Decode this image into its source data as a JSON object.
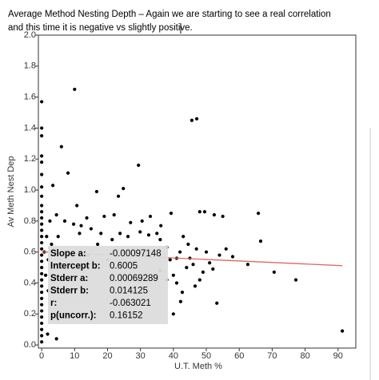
{
  "chart_data": {
    "type": "scatter",
    "title": "Average Method Nesting Depth – Again we are starting to see a real correlation",
    "subtitle": "and this time it is negative vs slightly positive.",
    "x_label": "U.T. Meth %",
    "y_label": "Av Meth Nest Dep",
    "color": "#000000",
    "fit_color": "#e06666",
    "xlim": [
      -1,
      95.4
    ],
    "ylim": [
      -0.02,
      2.0
    ],
    "xticks": [
      0,
      10,
      20,
      30,
      40,
      50,
      60,
      70,
      80,
      90
    ],
    "yticks": [
      {
        "value": 0,
        "label": "0.0"
      },
      {
        "value": 0.2,
        "label": "0.2"
      },
      {
        "value": 0.4,
        "label": "0.4"
      },
      {
        "value": 0.6,
        "label": "0.6"
      },
      {
        "value": 0.8,
        "label": "0.8"
      },
      {
        "value": 1,
        "label": "1.0"
      },
      {
        "value": 1.2,
        "label": "1.2"
      },
      {
        "value": 1.4,
        "label": "1.4"
      },
      {
        "value": 1.6,
        "label": "1.6"
      },
      {
        "value": 1.8,
        "label": "1.8"
      },
      {
        "value": 2,
        "label": "2.0"
      }
    ],
    "x": [
      0,
      0,
      0,
      0,
      0,
      0,
      0,
      0,
      0,
      0,
      0,
      0,
      0,
      0,
      0,
      0,
      0,
      0,
      0,
      0,
      0,
      0,
      0,
      0,
      0,
      0,
      0,
      0,
      0,
      0,
      0,
      0.8,
      1.2,
      1.5,
      2,
      2.5,
      2,
      3,
      1.8,
      4.5,
      3.4,
      6,
      8,
      10,
      10.7,
      9.7,
      12,
      13.7,
      15,
      11.5,
      7,
      4.5,
      5,
      16.7,
      18,
      19,
      21.4,
      23.3,
      24.8,
      23.8,
      22,
      26.2,
      27,
      29.4,
      29.9,
      30.5,
      32.5,
      33,
      35,
      36.2,
      36,
      38,
      39.3,
      39,
      40,
      42.2,
      42.7,
      41,
      42,
      44,
      45.6,
      47.1,
      46.6,
      48,
      49,
      45,
      46,
      47,
      48,
      49.5,
      50,
      51,
      52,
      52.4,
      53.2,
      54,
      55,
      56,
      58,
      62.6,
      65.8,
      66.5,
      70.6,
      77.2,
      91.3,
      43,
      44.5,
      25,
      20,
      14,
      17,
      36,
      38,
      40,
      41
    ],
    "values": [
      1.57,
      1.4,
      1.35,
      1.22,
      1.18,
      1.1,
      1.02,
      0.96,
      0.9,
      0.86,
      0.82,
      0.78,
      0.74,
      0.7,
      0.66,
      0.62,
      0.58,
      0.54,
      0.5,
      0.46,
      0.42,
      0.38,
      0.34,
      0.3,
      0.26,
      0.22,
      0.18,
      0.14,
      0.1,
      0.06,
      0.02,
      0.6,
      0.45,
      0.7,
      0.55,
      0.8,
      0.35,
      0.65,
      0.07,
      0.04,
      1.03,
      1.28,
      1.11,
      1.65,
      0.9,
      0.78,
      0.77,
      0.82,
      0.75,
      0.72,
      0.8,
      0.84,
      0.7,
      0.99,
      0.72,
      0.83,
      0.68,
      0.96,
      1.01,
      0.72,
      0.84,
      0.7,
      0.79,
      1.16,
      0.73,
      0.8,
      0.71,
      0.83,
      0.72,
      0.77,
      0.68,
      0.63,
      0.85,
      0.55,
      0.45,
      0.28,
      0.34,
      0.4,
      0.6,
      0.5,
      1.45,
      1.46,
      0.38,
      0.42,
      0.47,
      0.56,
      0.52,
      0.62,
      0.86,
      0.86,
      0.6,
      0.53,
      0.49,
      0.84,
      0.27,
      0.58,
      0.83,
      0.62,
      0.57,
      0.52,
      0.85,
      0.67,
      0.47,
      0.42,
      0.09,
      0.7,
      0.65,
      0.6,
      0.55,
      0.58,
      0.65,
      0.48,
      0.42,
      0.2,
      0.56
    ],
    "stats": [
      {
        "label": "Slope a:",
        "value": -0.00097148
      },
      {
        "label": "Intercept b:",
        "value": 0.6005
      },
      {
        "label": "Stderr a:",
        "value": 0.00069289
      },
      {
        "label": "Stderr b:",
        "value": 0.014125
      },
      {
        "label": "r:",
        "value": -0.063021
      },
      {
        "label": "p(uncorr.):",
        "value": 0.16152
      }
    ]
  }
}
